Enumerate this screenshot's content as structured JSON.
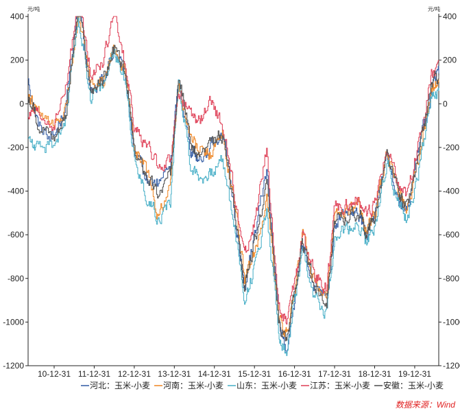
{
  "chart_data": {
    "type": "line",
    "y_unit_left": "元/吨",
    "y_unit_right": "元/吨",
    "ylim": [
      -1200,
      400
    ],
    "y_ticks": [
      400,
      200,
      0,
      -200,
      -400,
      -600,
      -800,
      -1000,
      -1200
    ],
    "x_ticks": [
      "10-12-31",
      "11-12-31",
      "12-12-31",
      "13-12-31",
      "14-12-31",
      "15-12-31",
      "16-12-31",
      "17-12-31",
      "18-12-31",
      "19-12-31"
    ],
    "x_range": [
      2010.35,
      2020.6
    ],
    "grid": false,
    "legend_position": "bottom",
    "source": "数据来源：Wind",
    "x_anchor_values": [
      2010.35,
      2010.6,
      2011.0,
      2011.3,
      2011.6,
      2011.9,
      2012.2,
      2012.5,
      2012.8,
      2013.0,
      2013.3,
      2013.6,
      2013.9,
      2014.1,
      2014.4,
      2014.6,
      2014.9,
      2015.2,
      2015.5,
      2015.75,
      2016.0,
      2016.3,
      2016.6,
      2016.8,
      2017.0,
      2017.2,
      2017.5,
      2017.8,
      2018.0,
      2018.3,
      2018.6,
      2018.8,
      2019.0,
      2019.3,
      2019.6,
      2019.8,
      2020.1,
      2020.4,
      2020.6
    ],
    "series": [
      {
        "name": "河北：玉米-小麦",
        "color": "#3a62a8",
        "values": [
          120,
          -100,
          -150,
          0,
          480,
          50,
          100,
          250,
          100,
          -230,
          -350,
          -370,
          -280,
          100,
          -200,
          -250,
          -200,
          -120,
          -500,
          -850,
          -600,
          -300,
          -1000,
          -1130,
          -900,
          -650,
          -850,
          -900,
          -550,
          -500,
          -520,
          -600,
          -500,
          -220,
          -430,
          -500,
          -200,
          50,
          140
        ]
      },
      {
        "name": "河南：玉米-小麦",
        "color": "#f08c2e",
        "values": [
          30,
          -50,
          -120,
          -20,
          430,
          80,
          90,
          260,
          110,
          -200,
          -300,
          -520,
          -350,
          80,
          -150,
          -220,
          -230,
          -150,
          -450,
          -800,
          -700,
          -420,
          -980,
          -1050,
          -850,
          -600,
          -820,
          -880,
          -520,
          -480,
          -480,
          -580,
          -500,
          -230,
          -400,
          -480,
          -250,
          60,
          100
        ]
      },
      {
        "name": "山东：玉米-小麦",
        "color": "#4fb2c9",
        "values": [
          -150,
          -220,
          -180,
          -60,
          400,
          40,
          80,
          240,
          90,
          -260,
          -420,
          -520,
          -450,
          120,
          -280,
          -330,
          -330,
          -250,
          -560,
          -900,
          -750,
          -480,
          -1050,
          -1150,
          -900,
          -700,
          -900,
          -950,
          -600,
          -580,
          -560,
          -640,
          -560,
          -260,
          -460,
          -540,
          -300,
          30,
          60
        ]
      },
      {
        "name": "江苏：玉米-小麦",
        "color": "#e0485e",
        "values": [
          -50,
          -60,
          -100,
          80,
          490,
          150,
          180,
          420,
          150,
          -120,
          -180,
          -300,
          -250,
          60,
          -60,
          -80,
          0,
          -100,
          -420,
          -700,
          -550,
          -200,
          -950,
          -1000,
          -800,
          -620,
          -780,
          -850,
          -480,
          -460,
          -440,
          -520,
          -460,
          -200,
          -380,
          -420,
          -180,
          120,
          200
        ]
      },
      {
        "name": "安徽：玉米-小麦",
        "color": "#555555",
        "values": [
          20,
          -80,
          -150,
          -30,
          450,
          60,
          100,
          250,
          120,
          -220,
          -320,
          -420,
          -320,
          150,
          -180,
          -240,
          -200,
          -140,
          -480,
          -820,
          -640,
          -360,
          -990,
          -1080,
          -860,
          -640,
          -840,
          -900,
          -540,
          -510,
          -500,
          -600,
          -510,
          -240,
          -420,
          -480,
          -240,
          80,
          130
        ]
      }
    ]
  }
}
